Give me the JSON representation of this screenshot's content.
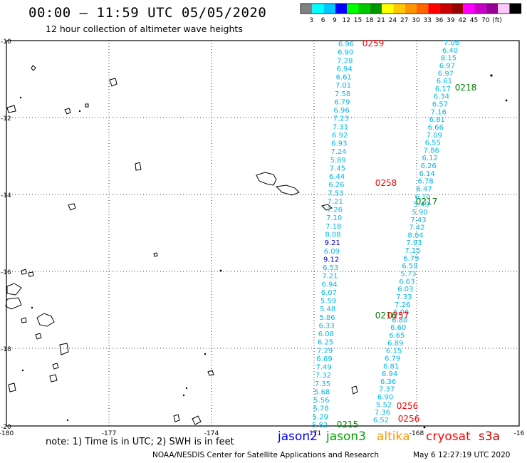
{
  "header": {
    "title": "00:00 — 11:59 UTC 05/05/2020",
    "subtitle": "12 hour collection of altimeter wave heights"
  },
  "colorbar": {
    "colors": [
      "#808080",
      "#00ffff",
      "#00c8ff",
      "#0000ff",
      "#00ff00",
      "#00c800",
      "#009600",
      "#ffff00",
      "#ffc800",
      "#ff9600",
      "#ff6400",
      "#ff0000",
      "#c80000",
      "#960000",
      "#ff00ff",
      "#c800c8",
      "#960096",
      "#ffc8ff",
      "#000000"
    ],
    "labels": [
      "3",
      "6",
      "9",
      "12",
      "15",
      "18",
      "21",
      "24",
      "27",
      "30",
      "33",
      "36",
      "39",
      "42",
      "45",
      "70",
      "(ft)"
    ]
  },
  "axes": {
    "lat_labels": [
      "-10",
      "-12",
      "-14",
      "-16",
      "-18",
      "-20"
    ],
    "lon_labels": [
      "-180",
      "-177",
      "-174",
      "-171",
      "-168",
      "-16"
    ]
  },
  "passes": [
    {
      "id": "0259",
      "color": "#ff0000"
    },
    {
      "id": "0218",
      "color": "#008000"
    },
    {
      "id": "0258",
      "color": "#ff0000"
    },
    {
      "id": "0217",
      "color": "#008000"
    },
    {
      "id": "0216",
      "color": "#008000"
    },
    {
      "id": "0257",
      "color": "#ff0000"
    },
    {
      "id": "0256",
      "color": "#ff0000"
    },
    {
      "id": "0256",
      "color": "#ff0000"
    },
    {
      "id": "0215",
      "color": "#008000"
    }
  ],
  "track1": [
    "6.96",
    "6.90",
    "7.28",
    "6.94",
    "6.61",
    "7.01",
    "7.58",
    "6.79",
    "6.96",
    "7.23",
    "7.31",
    "6.92",
    "6.93",
    "7.24",
    "5.89",
    "7.45",
    "6.44",
    "6.26",
    "7.53",
    "7.21",
    "7.26",
    "7.10",
    "7.18",
    "8.08",
    "9.21",
    "6.09",
    "9.12",
    "6.53",
    "7.21",
    "6.94",
    "6.07",
    "5.59",
    "5.48",
    "5.86",
    "6.33",
    "6.08",
    "6.25",
    "7.29",
    "6.69",
    "7.49",
    "7.32",
    "7.35",
    "5.68",
    "5.56",
    "5.78",
    "5.29",
    "5.82"
  ],
  "track1_colors": {
    "24": "#0000c8",
    "26": "#0000c8"
  },
  "track2": [
    "7.06",
    "6.40",
    "8.15",
    "6.97",
    "6.97",
    "6.61",
    "6.17",
    "6.34",
    "6.57",
    "7.16",
    "6.81",
    "6.66",
    "7.09",
    "6.55",
    "7.86",
    "6.12",
    "6.26",
    "6.14",
    "6.78",
    "6.47",
    "6.10",
    "5.49",
    "5.90",
    "7.43",
    "7.42",
    "8.04",
    "7.93",
    "7.15",
    "6.79",
    "6.59",
    "5.73",
    "6.63",
    "6.03",
    "7.33",
    "7.26",
    "6.06",
    "6.80",
    "6.60",
    "6.65",
    "6.89",
    "6.15",
    "6.79",
    "6.81",
    "6.94",
    "6.36",
    "7.37",
    "6.90",
    "5.52",
    "7.36",
    "6.52"
  ],
  "footer": {
    "note": "note: 1) Time is in UTC; 2) SWH is in feet",
    "credit": "NOAA/NESDIS Center for Satellite Applications and Research",
    "timestamp": "May  6 12:27:19 UTC 2020"
  },
  "satellites": [
    {
      "name": "jason2",
      "color": "#0000ff"
    },
    {
      "name": "jason3",
      "color": "#00a000"
    },
    {
      "name": "altika",
      "color": "#ff9600"
    },
    {
      "name": "cryosat",
      "color": "#ff0000"
    },
    {
      "name": "s3a",
      "color": "#c80000"
    }
  ]
}
